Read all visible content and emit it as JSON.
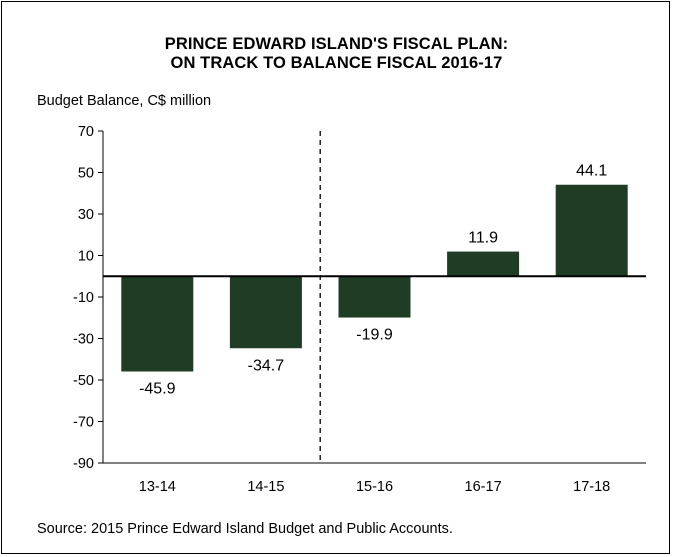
{
  "chart_data": {
    "type": "bar",
    "title_lines": [
      "PRINCE EDWARD ISLAND'S FISCAL PLAN:",
      "ON TRACK TO BALANCE FISCAL 2016-17"
    ],
    "ylabel": "Budget Balance, C$ million",
    "xlabel": "",
    "categories": [
      "13-14",
      "14-15",
      "15-16",
      "16-17",
      "17-18"
    ],
    "values": [
      -45.9,
      -34.7,
      -19.9,
      11.9,
      44.1
    ],
    "data_labels": [
      "-45.9",
      "-34.7",
      "-19.9",
      "11.9",
      "44.1"
    ],
    "ylim": [
      -90,
      70
    ],
    "yticks": [
      70,
      50,
      30,
      10,
      -10,
      -30,
      -50,
      -70,
      -90
    ],
    "bar_color": "#1f3d24",
    "grid": false,
    "legend": false,
    "divider_after_category_index": 1,
    "source": "Source: 2015 Prince Edward Island Budget and Public Accounts."
  }
}
